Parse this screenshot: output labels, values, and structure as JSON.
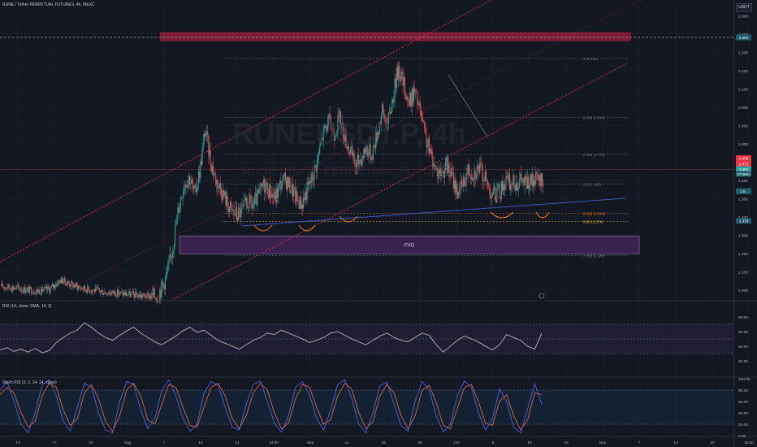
{
  "header": {
    "title": "RUNE / Tether PERPETUAL FUTURES, 4h, MEXC",
    "rsi_label": "RSI (14, close, SMA, 14, 2)",
    "stoch_label": "Stoch RSI (3, 3, 14, 14, close)",
    "currency": "USDT"
  },
  "watermark": {
    "symbol": "RUNEUSDT.P, 4h",
    "subtitle": "RUNE / Tether PERPETUAL FUTURES"
  },
  "colors": {
    "background": "#131722",
    "up": "#26a69a",
    "down": "#ef5350",
    "channel": "#f23645",
    "trendline": "#3f51b5",
    "supply_zone": "#8e1f3a",
    "fvg_zone": "#5c2a73",
    "rsi_line": "#c8c8c8",
    "stoch_k": "#4f6df5",
    "stoch_d": "#ef7043"
  },
  "chart_data": [
    {
      "type": "candlestick",
      "panel": "price",
      "ylim": [
        0.95,
        2.55
      ],
      "price_ticks": [
        "2.500",
        "2.400",
        "2.300",
        "2.200",
        "2.100",
        "2.000",
        "1.900",
        "1.800",
        "1.700",
        "1.600",
        "1.500",
        "1.400",
        "1.300",
        "1.200",
        "1.100",
        "1.000"
      ],
      "price_tick_values": [
        2.5,
        2.4,
        2.3,
        2.2,
        2.1,
        2.0,
        1.9,
        1.8,
        1.7,
        1.6,
        1.5,
        1.4,
        1.3,
        1.2,
        1.1,
        1.0
      ],
      "x_ticks": [
        "10",
        "17",
        "24",
        "Aug",
        "7",
        "14",
        "21",
        "14:00",
        "Sep",
        "11",
        "18",
        "25",
        "Oct",
        "9",
        "16",
        "23",
        "Nov",
        "7",
        "13",
        "20",
        "15:00"
      ],
      "path_days": [
        0,
        3,
        5,
        7,
        9,
        11,
        13,
        15,
        17,
        19,
        21,
        24,
        27,
        29,
        30,
        31,
        32,
        33,
        34,
        35,
        36,
        37,
        38,
        39,
        40,
        41,
        42,
        43,
        44,
        45,
        46,
        47,
        48,
        49,
        50,
        51,
        52,
        53,
        54,
        55,
        56,
        57,
        58,
        59,
        60,
        61,
        62,
        63,
        64,
        65,
        66,
        67,
        68,
        69,
        70,
        71,
        72,
        73,
        74,
        75,
        76,
        77,
        78,
        79,
        80,
        81,
        82,
        83,
        84,
        85,
        86,
        87,
        88,
        89,
        90,
        91,
        92,
        93,
        94,
        95,
        96,
        97,
        98,
        99,
        100,
        101,
        102,
        103
      ],
      "path_prices": [
        1.02,
        1.01,
        1.0,
        0.995,
        1.005,
        1.055,
        1.03,
        1.01,
        1.0,
        0.99,
        0.985,
        0.975,
        0.965,
        0.97,
        1.02,
        1.1,
        1.25,
        1.45,
        1.58,
        1.62,
        1.52,
        1.66,
        1.88,
        1.7,
        1.6,
        1.55,
        1.48,
        1.43,
        1.41,
        1.44,
        1.48,
        1.46,
        1.52,
        1.58,
        1.54,
        1.5,
        1.58,
        1.6,
        1.56,
        1.5,
        1.47,
        1.55,
        1.62,
        1.72,
        1.86,
        1.92,
        1.86,
        1.94,
        1.84,
        1.76,
        1.68,
        1.72,
        1.78,
        1.74,
        1.85,
        1.98,
        1.9,
        2.06,
        2.22,
        2.12,
        2.02,
        2.09,
        1.98,
        1.84,
        1.74,
        1.66,
        1.64,
        1.68,
        1.62,
        1.54,
        1.57,
        1.66,
        1.64,
        1.67,
        1.62,
        1.55,
        1.52,
        1.54,
        1.6,
        1.58,
        1.59,
        1.6,
        1.58,
        1.59,
        1.6,
        1.59,
        1.58,
        1.6
      ],
      "current_price": "1.602",
      "price_labels": [
        "1.485",
        "1.471",
        "1.602",
        "07h58m",
        "1.5..",
        "1.378",
        "2.381"
      ],
      "fib_levels": [
        {
          "label": "0 (2.266)",
          "value": 2.266,
          "color": "#787b86"
        },
        {
          "label": "0.236 (1.943)",
          "value": 1.943,
          "color": "#787b86"
        },
        {
          "label": "0.382 (1.742)",
          "value": 1.742,
          "color": "#787b86"
        },
        {
          "label": "0.5 (1.580)",
          "value": 1.58,
          "color": "#787b86"
        },
        {
          "label": "0.618 (1.418)",
          "value": 1.418,
          "color": "#f57c00"
        },
        {
          "label": "0.65 (1.374)",
          "value": 1.374,
          "color": "#ffb74d"
        },
        {
          "label": "0.786 (1.188)",
          "value": 1.188,
          "color": "#787b86"
        }
      ],
      "zones": [
        {
          "label": "",
          "top": 2.41,
          "bottom": 2.36
        },
        {
          "label": "FVG",
          "top": 1.295,
          "bottom": 1.198
        }
      ],
      "dashed_level": 2.381
    },
    {
      "type": "line",
      "panel": "rsi",
      "ylim": [
        0,
        100
      ],
      "ticks": [
        "80.00",
        "60.00",
        "40.00",
        "20.00"
      ],
      "tick_values": [
        80,
        60,
        40,
        20
      ],
      "bands": [
        70,
        50,
        30
      ],
      "series": [
        {
          "name": "",
          "values": [
            35,
            38,
            33,
            36,
            32,
            37,
            31,
            34,
            45,
            52,
            58,
            62,
            72,
            66,
            58,
            52,
            48,
            55,
            61,
            66,
            58,
            52,
            46,
            42,
            48,
            54,
            61,
            66,
            59,
            62,
            55,
            48,
            44,
            40,
            36,
            42,
            48,
            52,
            58,
            56,
            62,
            58,
            54,
            50,
            45,
            48,
            52,
            58,
            60,
            55,
            50,
            46,
            42,
            48,
            54,
            58,
            52,
            48,
            46,
            52,
            58,
            55,
            42,
            32,
            40,
            48,
            54,
            50,
            46,
            40,
            35,
            42,
            56,
            52,
            48,
            40,
            36,
            58
          ]
        }
      ]
    },
    {
      "type": "line",
      "panel": "stoch_rsi",
      "ylim": [
        0,
        100
      ],
      "ticks": [
        "100.00",
        "80.00",
        "60.00",
        "40.00",
        "20.00",
        "0.00"
      ],
      "tick_values": [
        100,
        80,
        60,
        40,
        20,
        0
      ],
      "bands": [
        80,
        20
      ],
      "series": [
        {
          "name": "",
          "values": [
            80,
            95,
            60,
            20,
            5,
            40,
            90,
            98,
            70,
            25,
            8,
            50,
            92,
            85,
            40,
            10,
            5,
            60,
            95,
            90,
            45,
            12,
            30,
            80,
            98,
            70,
            30,
            8,
            20,
            75,
            95,
            88,
            50,
            15,
            10,
            55,
            90,
            96,
            60,
            22,
            6,
            35,
            85,
            95,
            72,
            30,
            10,
            45,
            90,
            98,
            65,
            20,
            5,
            40,
            88,
            94,
            55,
            18,
            8,
            60,
            95,
            80,
            35,
            6,
            20,
            70,
            96,
            85,
            40,
            10,
            30,
            82,
            60,
            15,
            5,
            48,
            92,
            55
          ]
        },
        {
          "name": "",
          "values": [
            72,
            85,
            75,
            40,
            15,
            25,
            70,
            92,
            85,
            45,
            18,
            30,
            75,
            90,
            65,
            25,
            8,
            35,
            80,
            92,
            70,
            28,
            20,
            55,
            90,
            85,
            50,
            18,
            15,
            50,
            85,
            92,
            70,
            30,
            12,
            35,
            75,
            92,
            80,
            40,
            12,
            22,
            65,
            90,
            85,
            50,
            20,
            28,
            70,
            92,
            82,
            40,
            12,
            25,
            70,
            90,
            75,
            35,
            12,
            35,
            80,
            88,
            58,
            18,
            12,
            48,
            85,
            90,
            60,
            22,
            18,
            60,
            72,
            35,
            10,
            28,
            75,
            72
          ]
        }
      ]
    }
  ]
}
